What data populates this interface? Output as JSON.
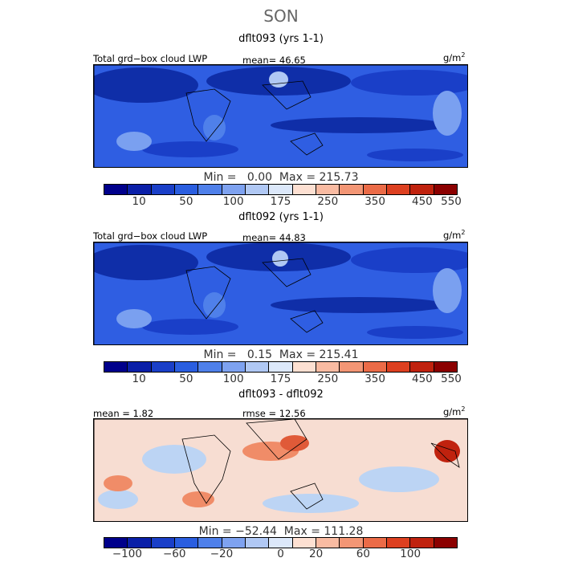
{
  "season": "SON",
  "panels": [
    {
      "title": "dflt093 (yrs 1-1)",
      "left_label": "Total grd−box cloud LWP",
      "mid_label": "mean=  46.65",
      "units": "g/m",
      "units_exp": "2",
      "stats": "Min =   0.00  Max = 215.73",
      "colorbar_ticks": [
        "10",
        "50",
        "100",
        "175",
        "250",
        "350",
        "450",
        "550"
      ]
    },
    {
      "title": "dflt092 (yrs 1-1)",
      "left_label": "Total grd−box cloud LWP",
      "mid_label": "mean=  44.83",
      "units": "g/m",
      "units_exp": "2",
      "stats": "Min =   0.15  Max = 215.41",
      "colorbar_ticks": [
        "10",
        "50",
        "100",
        "175",
        "250",
        "350",
        "450",
        "550"
      ]
    },
    {
      "title": "dflt093 - dflt092",
      "left_label": "mean =   1.82",
      "mid_label": "rmse =  12.56",
      "units": "g/m",
      "units_exp": "2",
      "stats": "Min = −52.44  Max = 111.28",
      "colorbar_ticks": [
        "−100",
        "−60",
        "−20",
        "0",
        "20",
        "60",
        "100"
      ]
    }
  ],
  "colors": {
    "colorbar": [
      "#00008b",
      "#0a1fa8",
      "#1a3fc8",
      "#2a5ee0",
      "#4f80ea",
      "#7ea2f0",
      "#b0c8f4",
      "#dce8fa",
      "#fde0d2",
      "#f9bba2",
      "#f39675",
      "#eb6b47",
      "#dd4020",
      "#c0220e",
      "#8b0000"
    ],
    "abs_base": "#2f5ee2",
    "abs_dark": "#0f2ea8",
    "abs_light": "#7aa0f0",
    "diff_base": "#f7ddd2",
    "diff_blue": "#bcd4f4",
    "diff_red": "#f08c68"
  }
}
